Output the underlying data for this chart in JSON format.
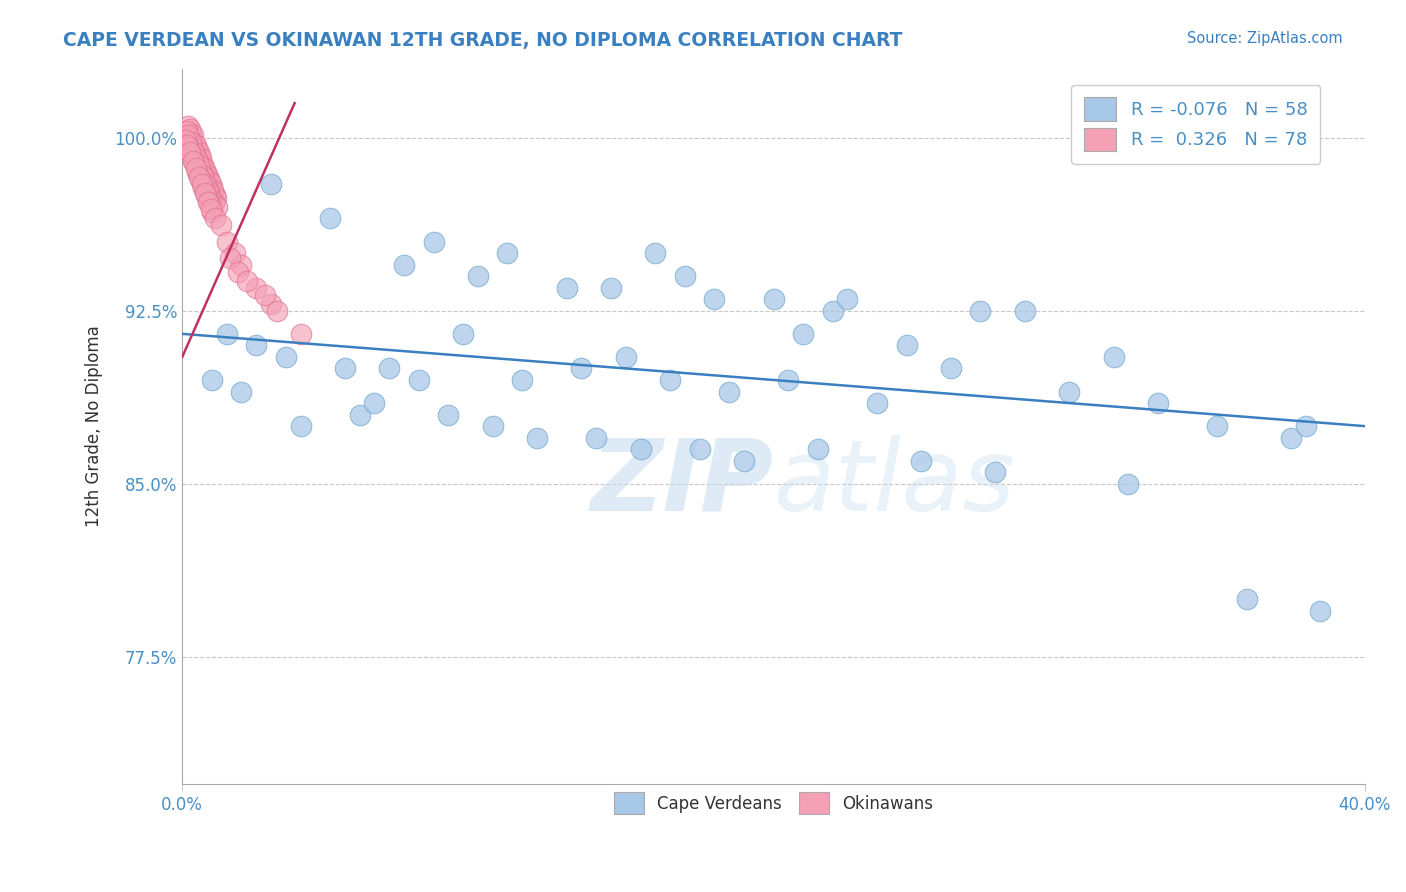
{
  "title": "CAPE VERDEAN VS OKINAWAN 12TH GRADE, NO DIPLOMA CORRELATION CHART",
  "source": "Source: ZipAtlas.com",
  "ylabel": "12th Grade, No Diploma",
  "xlim": [
    0.0,
    40.0
  ],
  "ylim": [
    72.0,
    103.0
  ],
  "yticks": [
    77.5,
    85.0,
    92.5,
    100.0
  ],
  "ytick_labels": [
    "77.5%",
    "85.0%",
    "92.5%",
    "100.0%"
  ],
  "legend_blue_R": "-0.076",
  "legend_blue_N": "58",
  "legend_pink_R": "0.326",
  "legend_pink_N": "78",
  "legend_label_blue": "Cape Verdeans",
  "legend_label_pink": "Okinawans",
  "blue_color": "#a8c8e8",
  "pink_color": "#f4a0b5",
  "blue_edge_color": "#7aacce",
  "pink_edge_color": "#e07090",
  "blue_line_color": "#3a80c0",
  "pink_line_color": "#c03060",
  "watermark_color": "#c8ddf0",
  "background_color": "#ffffff",
  "grid_color": "#c8c8c8",
  "blue_points_x": [
    3.0,
    5.0,
    7.5,
    8.5,
    10.0,
    11.0,
    13.0,
    14.5,
    16.0,
    17.0,
    18.0,
    20.0,
    21.0,
    22.0,
    22.5,
    24.5,
    26.0,
    27.0,
    28.5,
    31.5,
    33.0,
    35.0,
    37.5,
    1.5,
    2.5,
    3.5,
    5.5,
    7.0,
    8.0,
    9.5,
    11.5,
    13.5,
    15.0,
    16.5,
    18.5,
    20.5,
    23.5,
    30.0,
    38.0,
    1.0,
    2.0,
    4.0,
    6.0,
    6.5,
    9.0,
    10.5,
    12.0,
    14.0,
    15.5,
    17.5,
    19.0,
    21.5,
    25.0,
    27.5,
    32.0,
    36.0,
    38.5
  ],
  "blue_points_y": [
    98.0,
    96.5,
    94.5,
    95.5,
    94.0,
    95.0,
    93.5,
    93.5,
    95.0,
    94.0,
    93.0,
    93.0,
    91.5,
    92.5,
    93.0,
    91.0,
    90.0,
    92.5,
    92.5,
    90.5,
    88.5,
    87.5,
    87.0,
    91.5,
    91.0,
    90.5,
    90.0,
    90.0,
    89.5,
    91.5,
    89.5,
    90.0,
    90.5,
    89.5,
    89.0,
    89.5,
    88.5,
    89.0,
    87.5,
    89.5,
    89.0,
    87.5,
    88.0,
    88.5,
    88.0,
    87.5,
    87.0,
    87.0,
    86.5,
    86.5,
    86.0,
    86.5,
    86.0,
    85.5,
    85.0,
    80.0,
    79.5
  ],
  "pink_points_x": [
    0.2,
    0.3,
    0.4,
    0.5,
    0.6,
    0.7,
    0.8,
    0.9,
    1.0,
    1.1,
    0.25,
    0.35,
    0.45,
    0.55,
    0.65,
    0.75,
    0.85,
    0.95,
    1.05,
    1.15,
    0.15,
    0.22,
    0.32,
    0.42,
    0.52,
    0.62,
    0.72,
    0.82,
    0.92,
    1.08,
    0.18,
    0.28,
    0.38,
    0.48,
    0.58,
    0.68,
    0.78,
    0.88,
    0.98,
    1.18,
    0.12,
    0.2,
    0.3,
    0.4,
    0.5,
    0.6,
    0.7,
    0.8,
    0.9,
    1.0,
    0.16,
    0.26,
    0.36,
    0.46,
    0.56,
    0.66,
    0.76,
    0.86,
    0.96,
    1.12,
    1.3,
    1.5,
    1.8,
    2.0,
    2.5,
    3.0,
    1.6,
    1.9,
    2.2,
    2.8,
    3.2,
    4.0
  ],
  "pink_points_y": [
    100.5,
    100.2,
    99.8,
    99.5,
    99.2,
    98.8,
    98.5,
    98.2,
    97.9,
    97.5,
    100.4,
    100.1,
    99.7,
    99.4,
    99.1,
    98.7,
    98.4,
    98.1,
    97.7,
    97.4,
    100.3,
    100.0,
    99.6,
    99.3,
    99.0,
    98.6,
    98.3,
    97.9,
    97.6,
    97.2,
    100.1,
    99.8,
    99.4,
    99.1,
    98.8,
    98.4,
    98.0,
    97.7,
    97.3,
    97.0,
    99.9,
    99.6,
    99.2,
    98.9,
    98.5,
    98.2,
    97.8,
    97.5,
    97.2,
    96.8,
    99.7,
    99.4,
    99.0,
    98.7,
    98.3,
    98.0,
    97.6,
    97.2,
    96.9,
    96.5,
    96.2,
    95.5,
    95.0,
    94.5,
    93.5,
    92.8,
    94.8,
    94.2,
    93.8,
    93.2,
    92.5,
    91.5
  ],
  "blue_trend_x": [
    0.0,
    40.0
  ],
  "blue_trend_y": [
    91.5,
    87.5
  ],
  "pink_trend_x": [
    0.0,
    3.8
  ],
  "pink_trend_y": [
    90.5,
    101.5
  ]
}
